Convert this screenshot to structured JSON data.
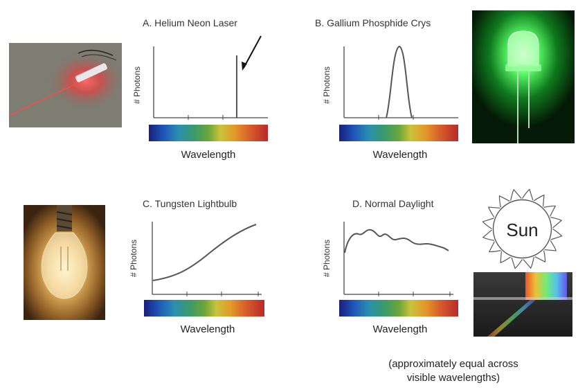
{
  "panels": {
    "a": {
      "title": "A.  Helium Neon Laser",
      "ylabel": "# Photons",
      "xlabel": "Wavelength"
    },
    "b": {
      "title": "B. Gallium Phosphide Crys",
      "ylabel": "# Photons",
      "xlabel": "Wavelength"
    },
    "c": {
      "title": "C.  Tungsten Lightbulb",
      "ylabel": "# Photons",
      "xlabel": "Wavelength"
    },
    "d": {
      "title": "D.  Normal Daylight",
      "ylabel": "# Photons",
      "xlabel": "Wavelength"
    }
  },
  "sun_label": "Sun",
  "daylight_note": [
    "(approximately equal across",
    "visible wavelengths)"
  ],
  "colors": {
    "laser_red": "#ff3b3b",
    "led_green": "#39ff5a",
    "bulb_glow": "#f7d27a"
  }
}
